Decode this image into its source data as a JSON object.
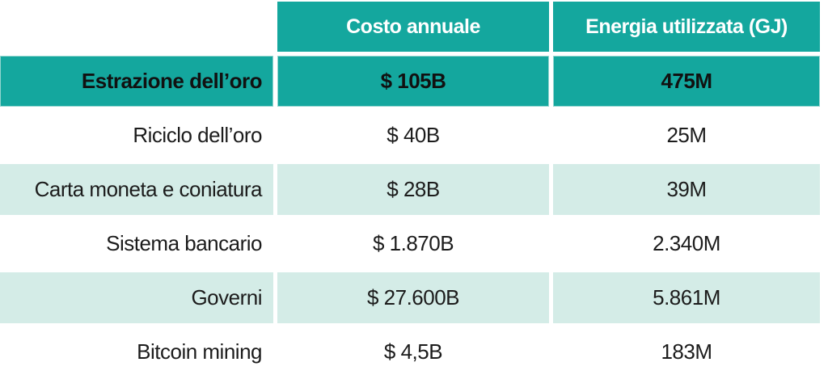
{
  "colors": {
    "teal": "#14a79e",
    "mint": "#d4ece7",
    "header_text": "#ffffff",
    "body_text": "#1c1c1c",
    "bg": "#ffffff"
  },
  "chart_data": {
    "type": "table",
    "title": "",
    "columns": [
      "",
      "Costo annuale",
      "Energia utilizzata (GJ)"
    ],
    "rows": [
      {
        "label": "Estrazione dell’oro",
        "costo_annuale": "$ 105B",
        "energia_gj": "475M",
        "highlighted": true,
        "stripe": "teal"
      },
      {
        "label": "Riciclo dell’oro",
        "costo_annuale": "$ 40B",
        "energia_gj": "25M",
        "highlighted": false,
        "stripe": "white"
      },
      {
        "label": "Carta moneta e coniatura",
        "costo_annuale": "$ 28B",
        "energia_gj": "39M",
        "highlighted": false,
        "stripe": "mint"
      },
      {
        "label": "Sistema bancario",
        "costo_annuale": "$ 1.870B",
        "energia_gj": "2.340M",
        "highlighted": false,
        "stripe": "white"
      },
      {
        "label": "Governi",
        "costo_annuale": "$ 27.600B",
        "energia_gj": "5.861M",
        "highlighted": false,
        "stripe": "mint"
      },
      {
        "label": "Bitcoin mining",
        "costo_annuale": "$ 4,5B",
        "energia_gj": "183M",
        "highlighted": false,
        "stripe": "white"
      }
    ]
  }
}
